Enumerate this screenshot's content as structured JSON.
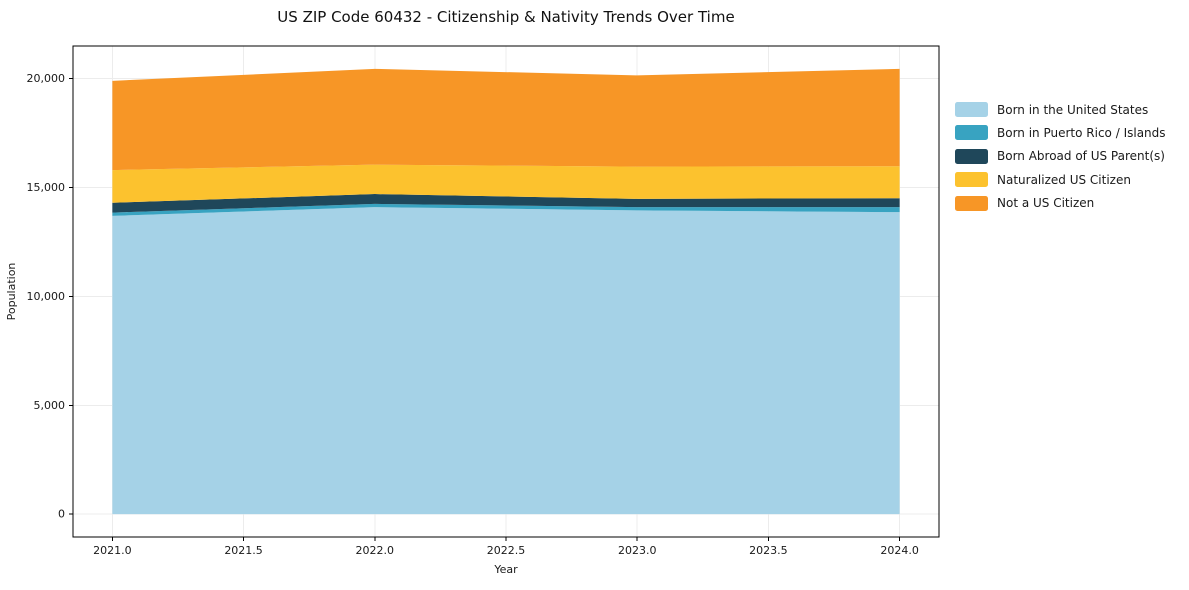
{
  "chart_data": {
    "type": "area",
    "stacked": true,
    "title": "US ZIP Code 60432 - Citizenship & Nativity Trends Over Time",
    "xlabel": "Year",
    "ylabel": "Population",
    "x": [
      2021,
      2022,
      2023,
      2024
    ],
    "series": [
      {
        "name": "Born in the United States",
        "color": "#a5d2e7",
        "values": [
          13700,
          14100,
          13950,
          13870
        ]
      },
      {
        "name": "Born in Puerto Rico / Islands",
        "color": "#38a3c1",
        "values": [
          150,
          150,
          150,
          230
        ]
      },
      {
        "name": "Born Abroad of US Parent(s)",
        "color": "#1f475a",
        "values": [
          450,
          450,
          380,
          410
        ]
      },
      {
        "name": "Naturalized US Citizen",
        "color": "#fcc22e",
        "values": [
          1500,
          1350,
          1480,
          1470
        ]
      },
      {
        "name": "Not a US Citizen",
        "color": "#f79626",
        "values": [
          4100,
          4400,
          4190,
          4470
        ]
      }
    ],
    "stacked_totals": [
      19900,
      20450,
      20150,
      20450
    ],
    "xlim": [
      2020.85,
      2024.15
    ],
    "ylim": [
      -1050,
      21500
    ],
    "x_ticks": [
      {
        "value": 2021.0,
        "label": "2021.0"
      },
      {
        "value": 2021.5,
        "label": "2021.5"
      },
      {
        "value": 2022.0,
        "label": "2022.0"
      },
      {
        "value": 2022.5,
        "label": "2022.5"
      },
      {
        "value": 2023.0,
        "label": "2023.0"
      },
      {
        "value": 2023.5,
        "label": "2023.5"
      },
      {
        "value": 2024.0,
        "label": "2024.0"
      }
    ],
    "y_ticks": [
      {
        "value": 0,
        "label": "0"
      },
      {
        "value": 5000,
        "label": "5,000"
      },
      {
        "value": 10000,
        "label": "10,000"
      },
      {
        "value": 15000,
        "label": "15,000"
      },
      {
        "value": 20000,
        "label": "20,000"
      }
    ],
    "grid": true,
    "grid_color": "#ececec",
    "spine_color": "#000000",
    "legend_position": "right-outside"
  }
}
